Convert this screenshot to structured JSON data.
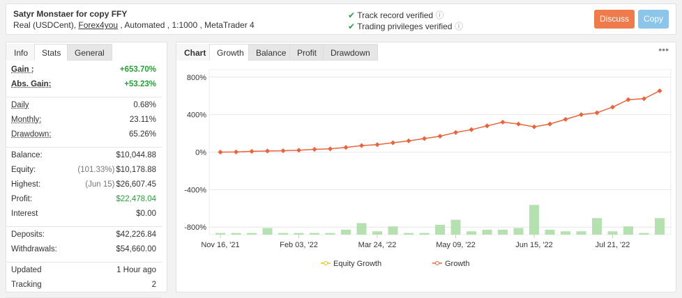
{
  "header": {
    "title": "Satyr Monstaer for copy FFY",
    "account": "Real (USDCent), ",
    "broker": "Forex4you",
    "details": " , Automated , 1:1000 , MetaTrader 4",
    "verified": [
      "Track record verified",
      "Trading privileges verified"
    ],
    "buttons": [
      "Discuss",
      "Copy"
    ]
  },
  "left_tabs": [
    "Info",
    "Stats",
    "General"
  ],
  "stats": [
    [
      {
        "label": "Gain :",
        "value": "+653.70%",
        "color": "#2a9d3a"
      },
      {
        "label": "Abs. Gain:",
        "value": "+53.23%",
        "color": "#2a9d3a"
      }
    ],
    [
      {
        "label": "Daily",
        "value": "0.68%"
      },
      {
        "label": "Monthly:",
        "value": "23.11%"
      },
      {
        "label": "Drawdown:",
        "value": "65.26%"
      }
    ],
    [
      {
        "label": "Balance:",
        "value": "$10,044.88"
      },
      {
        "label": "Equity:",
        "value": "$10,178.88",
        "note": "(101.33%)"
      },
      {
        "label": "Highest:",
        "value": "$26,607.45",
        "note": "(Jun 15)"
      },
      {
        "label": "Profit:",
        "value": "$22,478.04",
        "color": "#2a9d3a"
      },
      {
        "label": "Interest",
        "value": "$0.00"
      }
    ],
    [
      {
        "label": "Deposits:",
        "value": "$42,226.84"
      },
      {
        "label": "Withdrawals:",
        "value": "$54,660.00"
      }
    ],
    [
      {
        "label": "Updated",
        "value": "1 Hour ago"
      },
      {
        "label": "Tracking",
        "value": "2"
      }
    ]
  ],
  "chart_tabs": [
    "Chart",
    "Growth",
    "Balance",
    "Profit",
    "Drawdown"
  ],
  "chart_data": {
    "type": "line",
    "categories": [
      "Nov 16, '21",
      null,
      null,
      null,
      null,
      "Feb 03, '22",
      null,
      null,
      null,
      null,
      "Mar 24, '22",
      null,
      null,
      null,
      null,
      "May 09, '22",
      null,
      null,
      null,
      null,
      "Jun 15, '22",
      null,
      null,
      null,
      null,
      "Jul 21, '22",
      null,
      null,
      null
    ],
    "series": [
      {
        "name": "Equity Growth",
        "color": "#f0c020",
        "values": [
          null,
          null,
          null,
          null,
          null,
          null,
          null,
          null,
          null,
          null,
          null,
          null,
          null,
          null,
          null,
          null,
          null,
          null,
          null,
          null,
          null,
          null,
          null,
          null,
          null,
          null,
          null,
          null,
          null
        ]
      },
      {
        "name": "Growth",
        "color": "#e8643c",
        "values": [
          0,
          2,
          8,
          12,
          15,
          20,
          30,
          35,
          50,
          70,
          80,
          100,
          120,
          145,
          170,
          210,
          240,
          280,
          320,
          300,
          270,
          300,
          350,
          400,
          420,
          480,
          560,
          570,
          653.7
        ]
      },
      {
        "color": "#b5e0b0",
        "axis": "y2",
        "values": [
          1,
          1,
          1,
          4,
          1,
          1,
          1,
          1,
          3,
          7,
          2,
          5,
          1,
          1,
          6,
          9,
          2,
          3,
          3,
          4,
          18,
          3,
          2,
          2,
          10,
          2,
          5,
          1,
          10
        ]
      }
    ],
    "ylim": [
      -880,
      880
    ],
    "yticks": [
      {
        "value": 800,
        "label": "800%"
      },
      {
        "value": 400,
        "label": "400%"
      },
      {
        "value": 0,
        "label": "0%"
      },
      {
        "value": -400,
        "label": "-400%"
      },
      {
        "value": -800,
        "label": "-800%"
      }
    ],
    "y2lim": [
      0,
      100
    ],
    "grid": true
  }
}
